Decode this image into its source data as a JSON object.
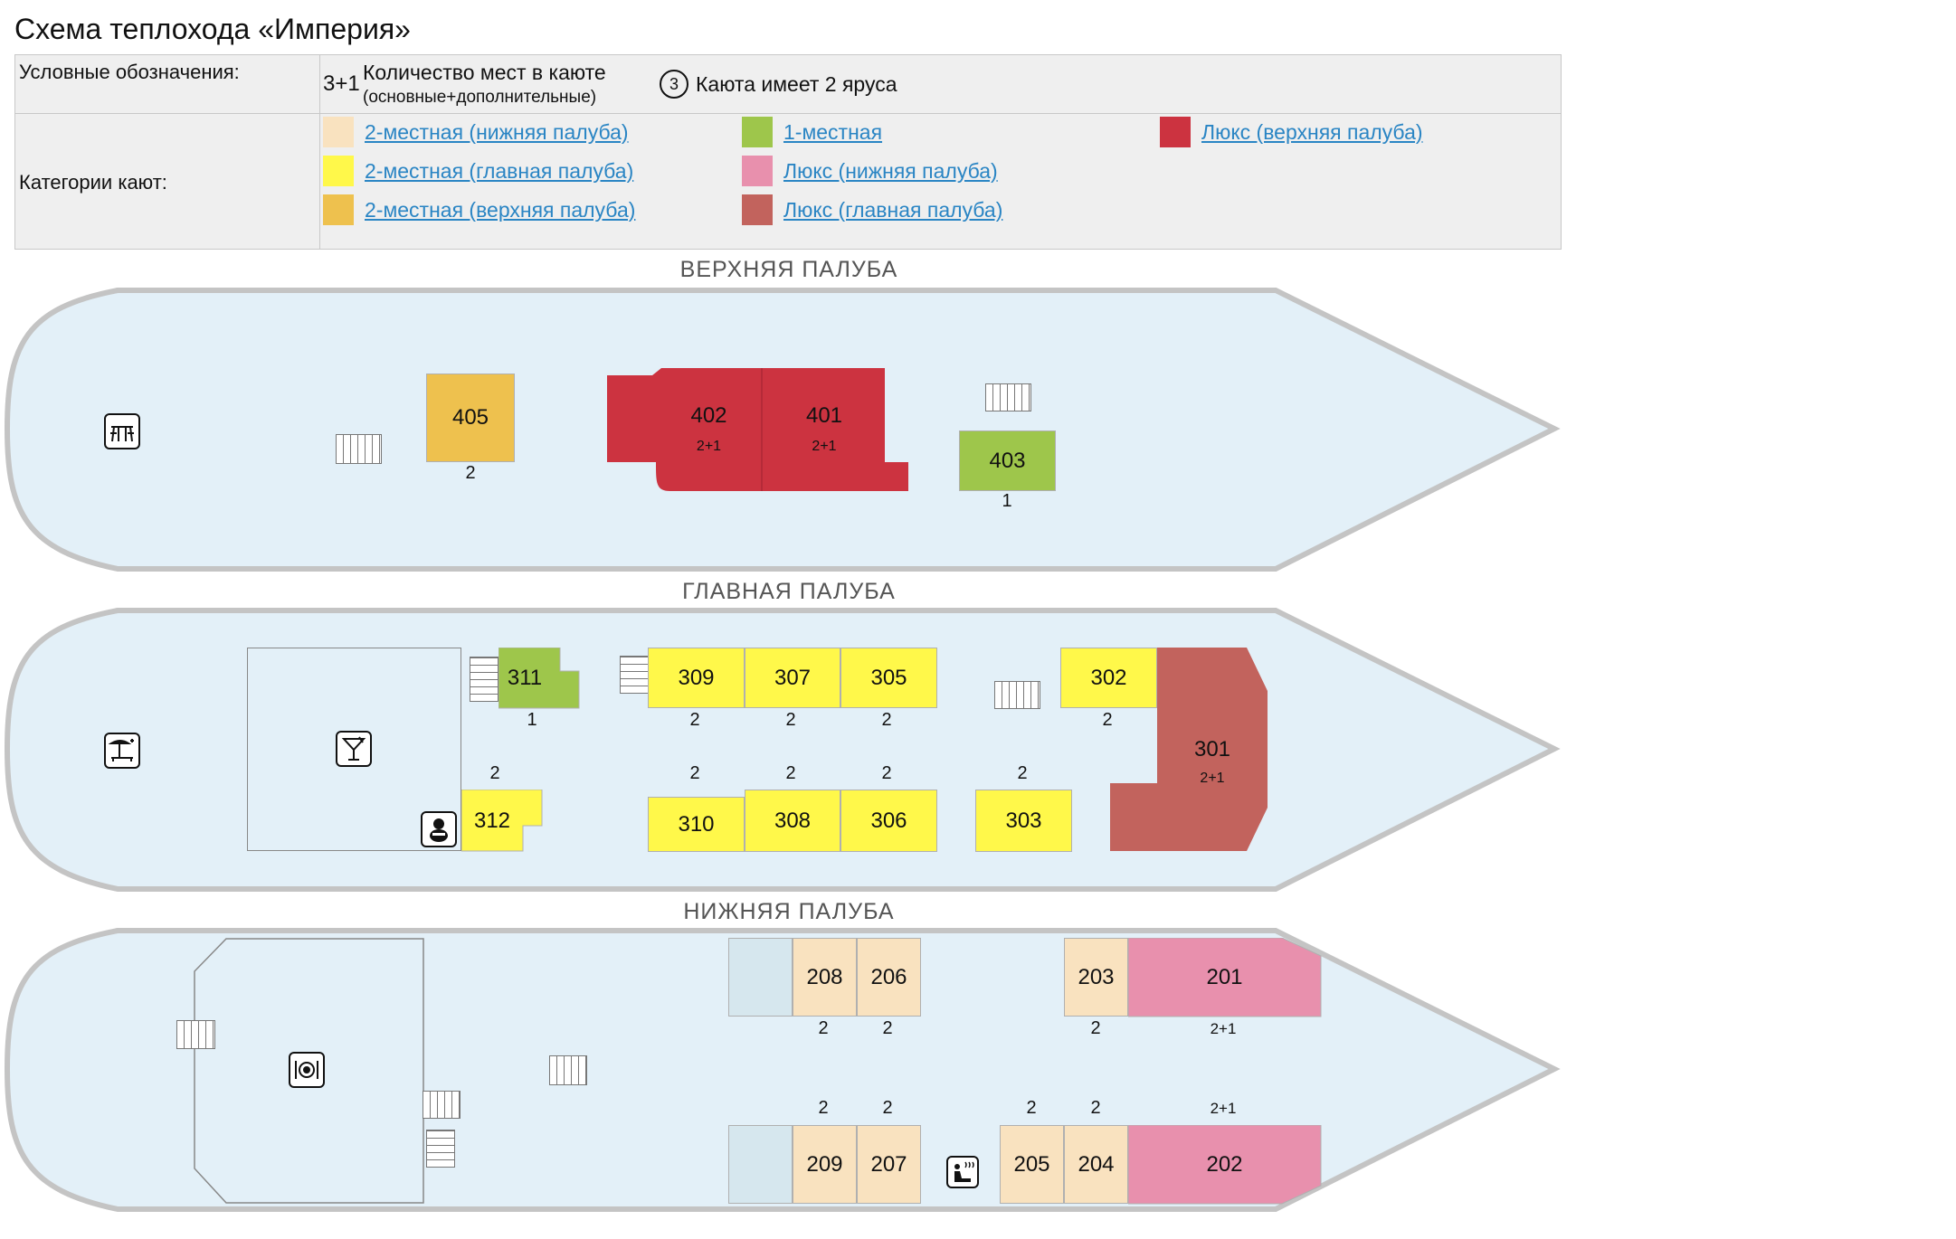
{
  "page_title": "Схема теплохода «Империя»",
  "legend": {
    "label": "Условные обозначения:",
    "places_sample": "3+1",
    "places_text": "Количество мест в каюте",
    "places_sub": "(основные+дополнительные)",
    "tier_num": "3",
    "tier_text": "Каюта имеет 2 яруса",
    "categories_label": "Категории кают:",
    "categories": [
      {
        "name": "2-местная (нижняя палуба)",
        "color": "#f9e2bf"
      },
      {
        "name": "2-местная (главная палуба)",
        "color": "#fff84a"
      },
      {
        "name": "2-местная (верхняя палуба)",
        "color": "#eec14e"
      },
      {
        "name": "1-местная",
        "color": "#9ec64b"
      },
      {
        "name": "Люкс (нижняя палуба)",
        "color": "#e890ad"
      },
      {
        "name": "Люкс (главная палуба)",
        "color": "#c2635d"
      },
      {
        "name": "Люкс (верхняя палуба)",
        "color": "#cc3340"
      }
    ]
  },
  "decks": {
    "upper": {
      "title": "ВЕРХНЯЯ ПАЛУБА"
    },
    "main": {
      "title": "ГЛАВНАЯ ПАЛУБА"
    },
    "lower": {
      "title": "НИЖНЯЯ ПАЛУБА"
    }
  },
  "cabins": {
    "c405": {
      "num": "405",
      "places": "2"
    },
    "c402": {
      "num": "402",
      "places": "2+1"
    },
    "c401": {
      "num": "401",
      "places": "2+1"
    },
    "c403": {
      "num": "403",
      "places": "1"
    },
    "c311": {
      "num": "311",
      "places": "1"
    },
    "c309": {
      "num": "309",
      "places": "2"
    },
    "c307": {
      "num": "307",
      "places": "2"
    },
    "c305": {
      "num": "305",
      "places": "2"
    },
    "c302": {
      "num": "302",
      "places": "2"
    },
    "c301": {
      "num": "301",
      "places": "2+1"
    },
    "c312": {
      "num": "312",
      "places": "2"
    },
    "c310": {
      "num": "310",
      "places": "2"
    },
    "c308": {
      "num": "308",
      "places": "2"
    },
    "c306": {
      "num": "306",
      "places": "2"
    },
    "c303": {
      "num": "303",
      "places": "2"
    },
    "c208": {
      "num": "208",
      "places": "2"
    },
    "c206": {
      "num": "206",
      "places": "2"
    },
    "c203": {
      "num": "203",
      "places": "2"
    },
    "c201": {
      "num": "201",
      "places": "2+1"
    },
    "c209": {
      "num": "209",
      "places": "2"
    },
    "c207": {
      "num": "207",
      "places": "2"
    },
    "c205": {
      "num": "205",
      "places": "2"
    },
    "c204": {
      "num": "204",
      "places": "2"
    },
    "c202": {
      "num": "202",
      "places": "2+1"
    }
  },
  "icons": {
    "upper_cafe": "cafe-table-icon",
    "main_sundeck": "sunbed-icon",
    "main_bar": "cocktail-bar-icon",
    "main_lobby": "person-icon",
    "lower_restaurant": "restaurant-icon",
    "lower_sauna": "sauna-icon"
  }
}
